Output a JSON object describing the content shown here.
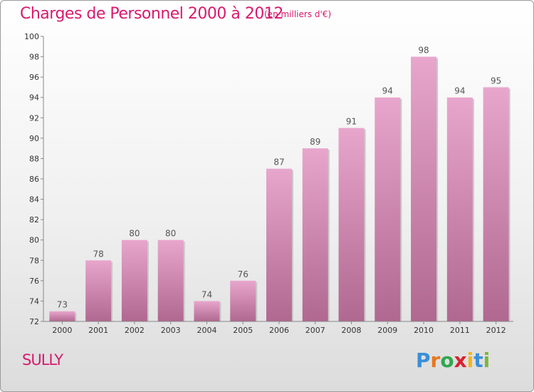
{
  "title": "Charges de Personnel 2000 à 2012",
  "subtitle": "(en milliers d'€)",
  "place": "SULLY",
  "logo": {
    "text": "Proxiti",
    "colors": [
      "#3a8fd8",
      "#e8771e",
      "#2fa84f",
      "#d8212f",
      "#f2b51a",
      "#3a8fd8",
      "#7ab83a"
    ]
  },
  "chart_data": {
    "type": "bar",
    "categories": [
      "2000",
      "2001",
      "2002",
      "2003",
      "2004",
      "2005",
      "2006",
      "2007",
      "2008",
      "2009",
      "2010",
      "2011",
      "2012"
    ],
    "values": [
      73,
      78,
      80,
      80,
      74,
      76,
      87,
      89,
      91,
      94,
      98,
      94,
      95
    ],
    "ylim": [
      72,
      100
    ],
    "yticks": [
      72,
      74,
      76,
      78,
      80,
      82,
      84,
      86,
      88,
      90,
      92,
      94,
      96,
      98,
      100
    ],
    "grid": false,
    "bar_color_top": "#e8a6cc",
    "bar_color_bottom": "#b06890",
    "axis_color": "#888888",
    "label_color": "#555555"
  }
}
